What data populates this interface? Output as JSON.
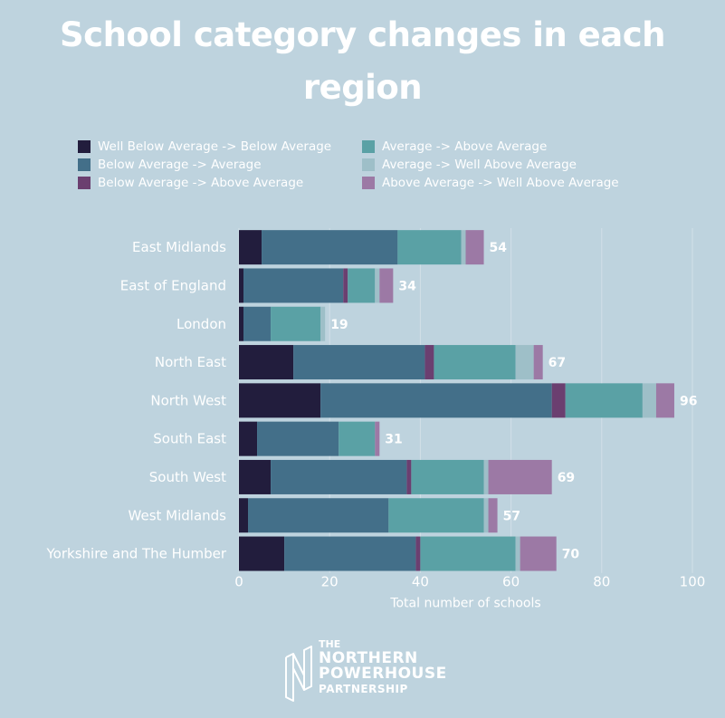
{
  "colors": {
    "background": "#bed3de",
    "text": "#ffffff",
    "grid": "#d2e0e8"
  },
  "logo": {
    "line1": "THE",
    "line2": "NORTHERN",
    "line3": "POWERHOUSE",
    "line4": "PARTNERSHIP"
  },
  "chart_data": {
    "type": "bar",
    "orientation": "horizontal",
    "stacked": true,
    "title": "School category changes in each region",
    "xlabel": "Total number of schools",
    "ylabel": "",
    "xlim": [
      0,
      100
    ],
    "xticks": [
      0,
      20,
      40,
      60,
      80,
      100
    ],
    "grid": true,
    "legend_position": "top",
    "categories": [
      "East Midlands",
      "East of England",
      "London",
      "North East",
      "North West",
      "South East",
      "South West",
      "West Midlands",
      "Yorkshire and The Humber"
    ],
    "totals": [
      54,
      34,
      19,
      67,
      96,
      31,
      69,
      57,
      70
    ],
    "series": [
      {
        "name": "Well Below Average -> Below Average",
        "color": "#221d3d",
        "values": [
          5,
          1,
          1,
          12,
          18,
          4,
          7,
          2,
          10
        ]
      },
      {
        "name": "Below Average -> Average",
        "color": "#436f89",
        "values": [
          30,
          22,
          6,
          29,
          51,
          18,
          30,
          31,
          29
        ]
      },
      {
        "name": "Below Average -> Above Average",
        "color": "#6b3f70",
        "values": [
          0,
          1,
          0,
          2,
          3,
          0,
          1,
          0,
          1
        ]
      },
      {
        "name": "Average -> Above Average",
        "color": "#5aa1a5",
        "values": [
          14,
          6,
          11,
          18,
          17,
          8,
          16,
          21,
          21
        ]
      },
      {
        "name": "Average -> Well Above Average",
        "color": "#9ebfc8",
        "values": [
          1,
          1,
          1,
          4,
          3,
          0,
          1,
          1,
          1
        ]
      },
      {
        "name": "Above Average -> Well Above Average",
        "color": "#9c79a5",
        "values": [
          4,
          3,
          0,
          2,
          4,
          1,
          14,
          2,
          8
        ]
      }
    ]
  }
}
